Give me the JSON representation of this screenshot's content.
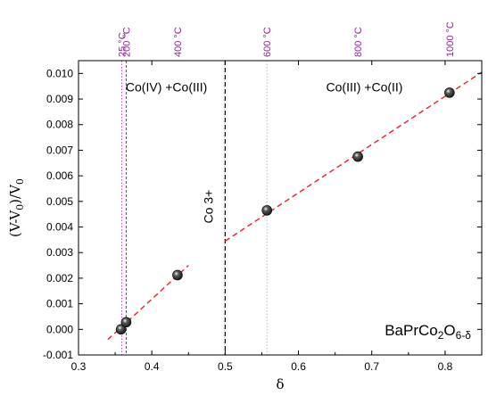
{
  "chart_data": {
    "type": "scatter",
    "xlabel": "δ",
    "ylabel": {
      "main": "(V-V",
      "sub1": "0",
      "mid": ")/V",
      "sub2": "0"
    },
    "xlim": [
      0.3,
      0.85
    ],
    "ylim": [
      -0.001,
      0.0105
    ],
    "x_ticks": [
      {
        "value": 0.3,
        "label": "0.3"
      },
      {
        "value": 0.4,
        "label": "0.4"
      },
      {
        "value": 0.5,
        "label": "0.5"
      },
      {
        "value": 0.6,
        "label": "0.6"
      },
      {
        "value": 0.7,
        "label": "0.7"
      },
      {
        "value": 0.8,
        "label": "0.8"
      }
    ],
    "y_ticks": [
      {
        "value": -0.001,
        "label": "-0.001"
      },
      {
        "value": 0.0,
        "label": "0.000"
      },
      {
        "value": 0.001,
        "label": "0.001"
      },
      {
        "value": 0.002,
        "label": "0.002"
      },
      {
        "value": 0.003,
        "label": "0.003"
      },
      {
        "value": 0.004,
        "label": "0.004"
      },
      {
        "value": 0.005,
        "label": "0.005"
      },
      {
        "value": 0.006,
        "label": "0.006"
      },
      {
        "value": 0.007,
        "label": "0.007"
      },
      {
        "value": 0.008,
        "label": "0.008"
      },
      {
        "value": 0.009,
        "label": "0.009"
      },
      {
        "value": 0.01,
        "label": "0.010"
      }
    ],
    "points": [
      {
        "x": 0.358,
        "y": 0.0
      },
      {
        "x": 0.365,
        "y": 0.00028
      },
      {
        "x": 0.435,
        "y": 0.00212
      },
      {
        "x": 0.557,
        "y": 0.00465
      },
      {
        "x": 0.681,
        "y": 0.00675
      },
      {
        "x": 0.806,
        "y": 0.00925
      }
    ],
    "fit_lines": [
      {
        "x": [
          0.34,
          0.45
        ],
        "y": [
          -0.0004,
          0.0025
        ]
      },
      {
        "x": [
          0.5,
          0.85
        ],
        "y": [
          0.00345,
          0.01005
        ]
      }
    ],
    "temperature_markers": [
      {
        "x": 0.359,
        "label": "25 °C",
        "color": "#cc44cc",
        "style": "dotted"
      },
      {
        "x": 0.365,
        "label": "200 °C",
        "color": "#8a2a8a",
        "style": "dashed"
      },
      {
        "x": 0.435,
        "label": "400 °C",
        "color": "#8a2a8a",
        "style": "none"
      },
      {
        "x": 0.557,
        "label": "600 °C",
        "color": "#bbbbbb",
        "style": "dotted"
      },
      {
        "x": 0.681,
        "label": "800 °C",
        "color": "#8a2a8a",
        "style": "none"
      },
      {
        "x": 0.806,
        "label": "1000 °C",
        "color": "#8a2a8a",
        "style": "none"
      }
    ],
    "divider": {
      "x": 0.5,
      "color": "#000000",
      "label": "Co 3+"
    },
    "region_labels": [
      {
        "text": "Co(IV) +Co(III)",
        "x": 0.42,
        "y": 0.0093
      },
      {
        "text": "Co(III) +Co(II)",
        "x": 0.69,
        "y": 0.0093
      }
    ],
    "formula": {
      "base": "BaPrCo",
      "sub1": "2",
      "mid": "O",
      "sub2": "6-δ"
    },
    "colors": {
      "fit": "#e8202a",
      "point": "#1a1a1a",
      "marker_label": "#8a2a8a"
    },
    "grid": false
  }
}
